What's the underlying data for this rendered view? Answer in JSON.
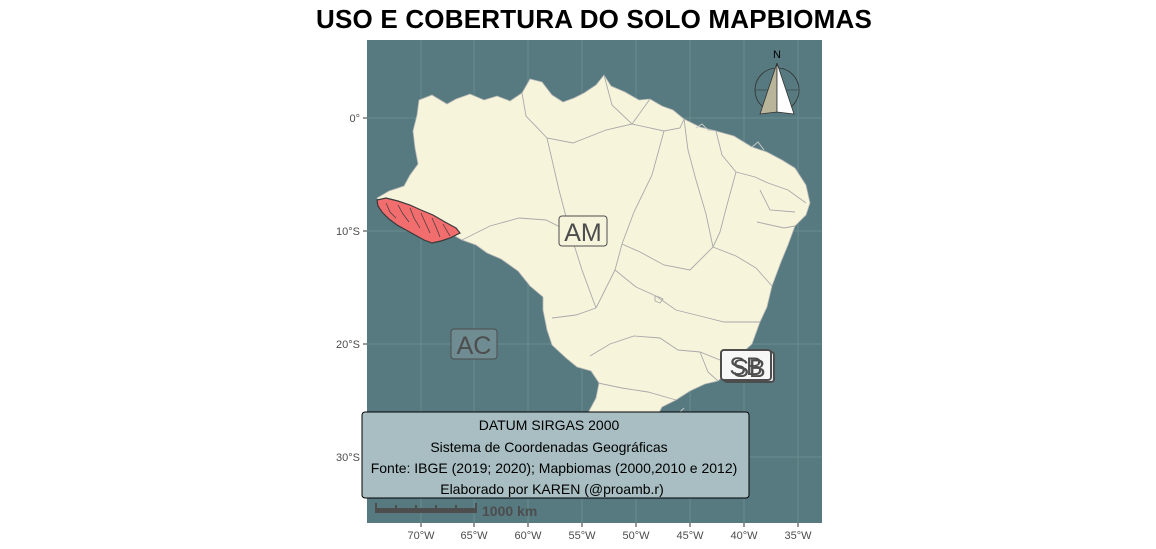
{
  "map": {
    "title": "USO E COBERTURA DO SOLO MAPBIOMAS",
    "colors": {
      "ocean": "#567a80",
      "land": "#f7f4dc",
      "state_border": "#a9a9a9",
      "highlight": "#f26d6d",
      "grid": "#6a8c91",
      "info_box": "#a8bec2"
    },
    "y_axis_labels": [
      "0°",
      "10°S",
      "20°S",
      "30°S"
    ],
    "x_axis_labels": [
      "70°W",
      "65°W",
      "60°W",
      "55°W",
      "50°W",
      "45°W",
      "40°W",
      "35°W"
    ],
    "state_labels": [
      {
        "id": "am",
        "text": "AM"
      },
      {
        "id": "ac",
        "text": "AC"
      },
      {
        "id": "sb",
        "text": "SB"
      }
    ],
    "north_arrow_label": "N",
    "scale_bar_label": "1000 km",
    "info_lines": [
      "DATUM SIRGAS 2000",
      "Sistema de Coordenadas Geográficas",
      "Fonte: IBGE (2019; 2020); Mapbiomas (2000,2010 e 2012)",
      "Elaborado por KAREN (@proamb.r)"
    ]
  }
}
